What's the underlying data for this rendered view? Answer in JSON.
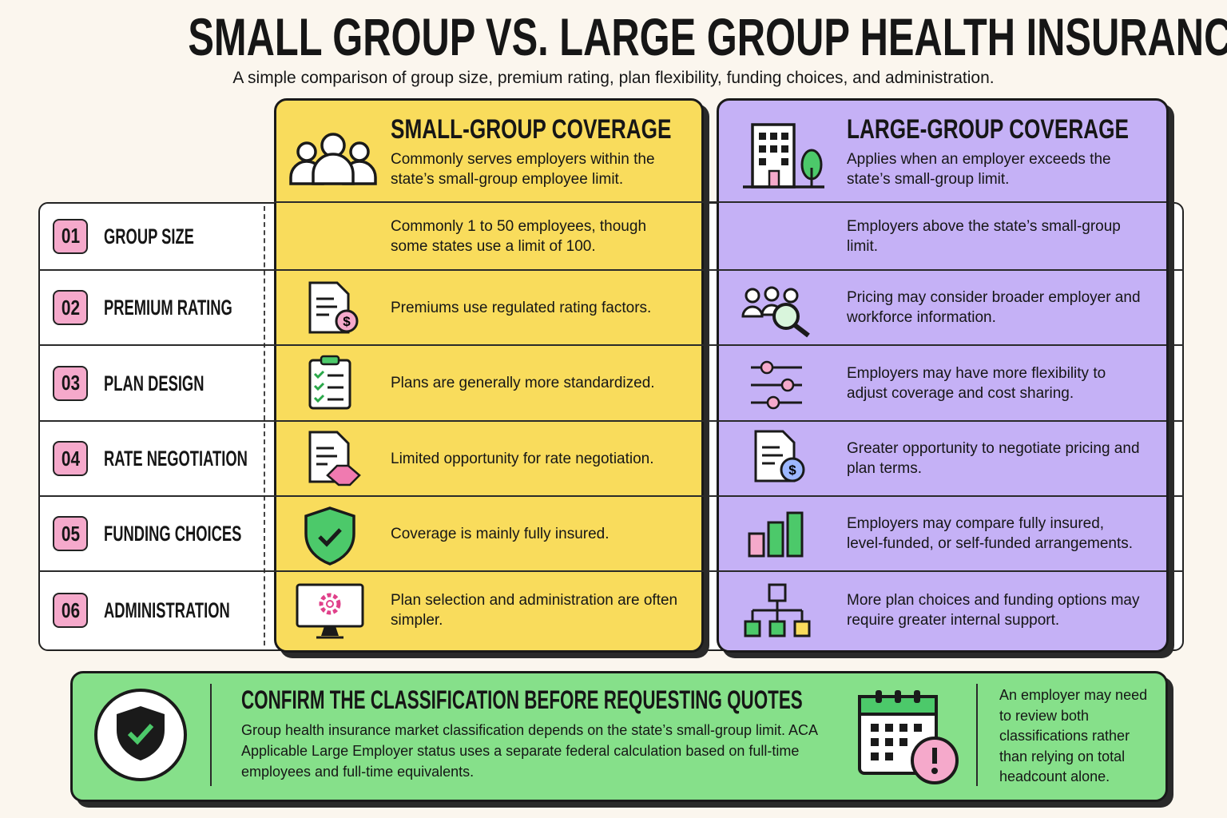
{
  "header": {
    "title": "SMALL GROUP VS. LARGE GROUP HEALTH INSURANCE",
    "subtitle": "A simple comparison of group size, premium rating, plan flexibility, funding choices, and administration."
  },
  "columns": [
    {
      "title": "SMALL-GROUP COVERAGE",
      "description": "Commonly serves employers within the state’s small-group employee limit."
    },
    {
      "title": "LARGE-GROUP COVERAGE",
      "description": "Applies when an employer exceeds the state’s small-group limit."
    }
  ],
  "rows": [
    {
      "number": "01",
      "label": "GROUP SIZE",
      "small": "Commonly 1 to 50 employees, though some states use a limit of 100.",
      "large": "Employers above the state’s small-group limit."
    },
    {
      "number": "02",
      "label": "PREMIUM RATING",
      "small": "Premiums use regulated rating factors.",
      "large": "Pricing may consider broader employer and workforce information."
    },
    {
      "number": "03",
      "label": "PLAN DESIGN",
      "small": "Plans are generally more standardized.",
      "large": "Employers may have more flexibility to adjust coverage and cost sharing."
    },
    {
      "number": "04",
      "label": "RATE NEGOTIATION",
      "small": "Limited opportunity for rate negotiation.",
      "large": "Greater opportunity to negotiate pricing and plan terms."
    },
    {
      "number": "05",
      "label": "FUNDING CHOICES",
      "small": "Coverage is mainly fully insured.",
      "large": "Employers may compare fully insured, level-funded, or self-funded arrangements."
    },
    {
      "number": "06",
      "label": "ADMINISTRATION",
      "small": "Plan selection and administration are often simpler.",
      "large": "More plan choices and funding options may require greater internal support."
    }
  ],
  "callout": {
    "title": "CONFIRM THE CLASSIFICATION BEFORE REQUESTING QUOTES",
    "body": "Group health insurance market classification depends on the state’s small-group limit. ACA Applicable Large Employer status uses a separate federal calculation based on full-time employees and full-time equivalents.",
    "note": "An employer may need to review both classifications rather than relying on total headcount alone."
  }
}
